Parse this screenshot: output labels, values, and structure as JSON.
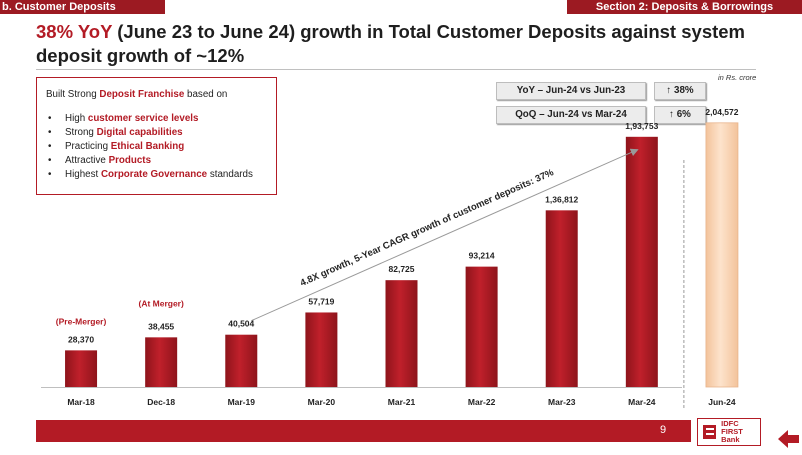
{
  "header": {
    "section_left": "b. Customer Deposits",
    "section_right": "Section 2:  Deposits & Borrowings"
  },
  "headline": {
    "accent": "38% YoY",
    "rest": " (June 23 to June 24) growth in Total Customer Deposits against system deposit growth of ~12%"
  },
  "unit_note": "in Rs. crore",
  "franchise": {
    "intro_prefix": "Built Strong ",
    "intro_highlight": "Deposit Franchise",
    "intro_suffix": " based on",
    "items": [
      {
        "prefix": "High ",
        "highlight": "customer service levels",
        "suffix": ""
      },
      {
        "prefix": "Strong ",
        "highlight": "Digital capabilities",
        "suffix": ""
      },
      {
        "prefix": "Practicing ",
        "highlight": "Ethical Banking",
        "suffix": ""
      },
      {
        "prefix": "Attractive ",
        "highlight": "Products",
        "suffix": ""
      },
      {
        "prefix": "Highest ",
        "highlight": "Corporate Governance",
        "suffix": " standards"
      }
    ]
  },
  "growth_table": [
    {
      "label": "YoY – Jun-24 vs Jun-23",
      "value": "↑ 38%"
    },
    {
      "label": "QoQ – Jun-24 vs Mar-24",
      "value": "↑ 6%"
    }
  ],
  "chart_data": {
    "type": "bar",
    "title": "",
    "xlabel": "",
    "ylabel": "",
    "categories": [
      "Mar-18",
      "Dec-18",
      "Mar-19",
      "Mar-20",
      "Mar-21",
      "Mar-22",
      "Mar-23",
      "Mar-24",
      "Jun-24"
    ],
    "values": [
      28370,
      38455,
      40504,
      57719,
      82725,
      93214,
      136812,
      193753,
      204572
    ],
    "value_labels": [
      "28,370",
      "38,455",
      "40,504",
      "57,719",
      "82,725",
      "93,214",
      "1,36,812",
      "1,93,753",
      "2,04,572"
    ],
    "ylim": [
      0,
      230000
    ],
    "grid": false,
    "bar_color": "#b31b25",
    "highlight_bar_color": "#fbd7b8",
    "highlight_category": "Jun-24",
    "annotations": [
      {
        "text": "(Pre-Merger)",
        "category": "Mar-18"
      },
      {
        "text": "(At Merger)",
        "category": "Dec-18"
      }
    ],
    "trend_annotation": "4.8X growth, 5-Year CAGR growth of customer deposits: 37%"
  },
  "footer": {
    "page_number": "9",
    "logo_line1": "IDFC FIRST",
    "logo_line2": "Bank",
    "logo_icon": "idfc-first-logo-icon",
    "back_icon": "back-arrow-icon"
  }
}
